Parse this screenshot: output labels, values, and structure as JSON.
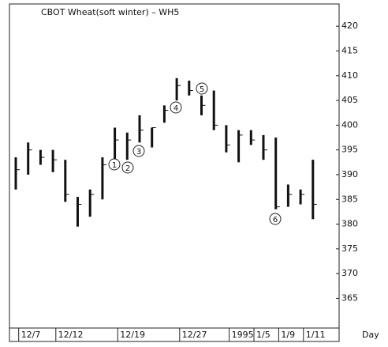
{
  "chart_data": {
    "type": "hlc",
    "title": "CBOT Wheat(soft winter) – WH5",
    "xlabel": "Day",
    "categories": [
      null,
      "12/7",
      null,
      null,
      "12/12",
      null,
      null,
      null,
      null,
      "12/19",
      null,
      null,
      null,
      null,
      "12/27",
      null,
      null,
      null,
      "1995",
      null,
      "1/5",
      null,
      "1/9",
      null,
      "1/11"
    ],
    "high": [
      393.5,
      396.5,
      395,
      395,
      393,
      385.5,
      387,
      393.5,
      399.5,
      398.5,
      402,
      399.5,
      404,
      409.5,
      409,
      406,
      407,
      400,
      399,
      399,
      398,
      397.5,
      388,
      387,
      393
    ],
    "low": [
      387,
      390,
      392,
      390.5,
      384.5,
      379.5,
      381.5,
      385,
      392,
      393,
      396.5,
      395.5,
      400.5,
      405,
      406,
      402,
      399,
      394.5,
      392.5,
      396,
      393,
      383,
      383.5,
      384,
      381
    ],
    "close": [
      391,
      395,
      393.5,
      393,
      386,
      384,
      386,
      392,
      397,
      397,
      399,
      399.5,
      403,
      408,
      407,
      404,
      400,
      396,
      398,
      397,
      395,
      383.5,
      386,
      386,
      384
    ],
    "color": "#111111",
    "ylim": [
      359,
      424.5
    ],
    "yticks": [
      365,
      370,
      375,
      380,
      385,
      390,
      395,
      400,
      405,
      410,
      415,
      420
    ],
    "annotations": [
      "1",
      "2",
      "3",
      "4",
      "5",
      "6"
    ]
  }
}
